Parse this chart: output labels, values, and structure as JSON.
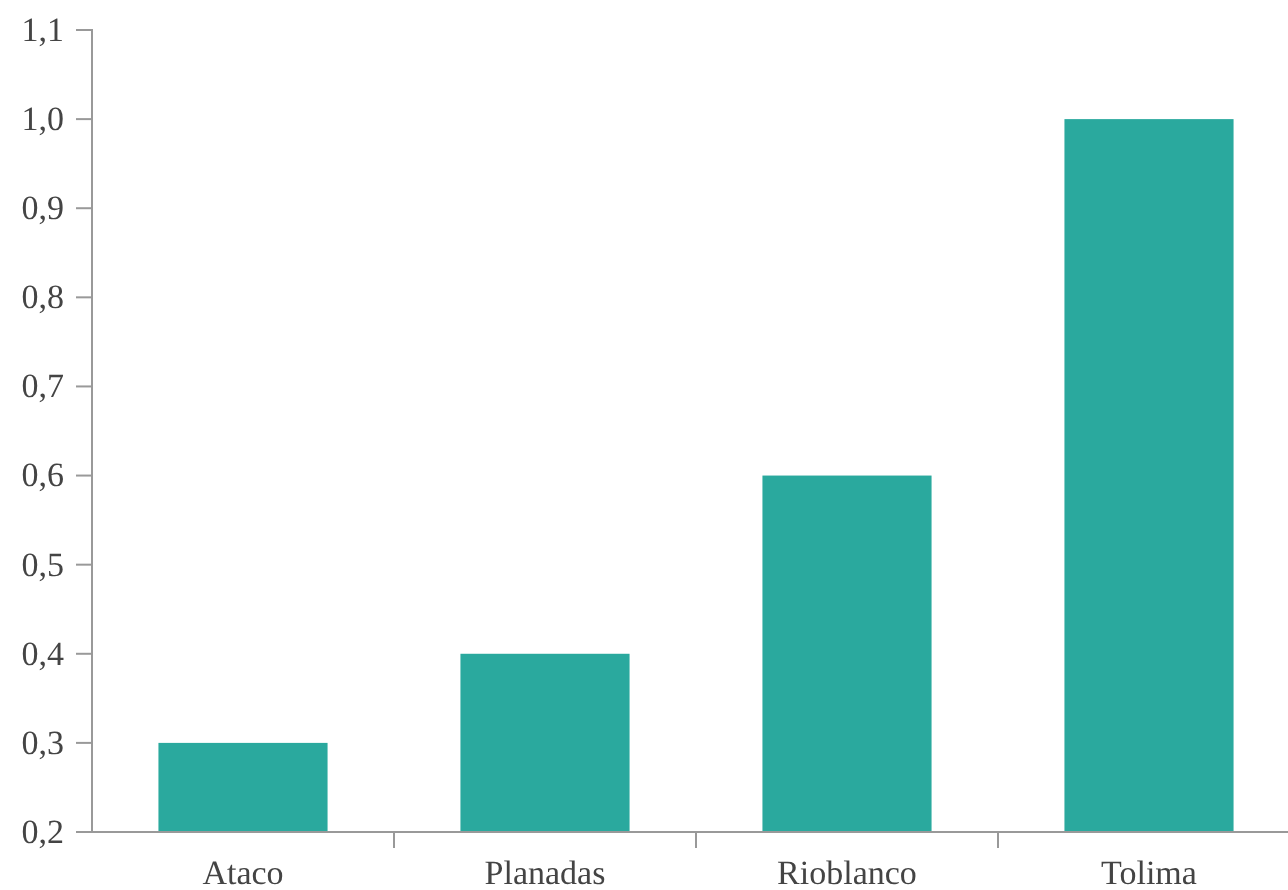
{
  "chart_data": {
    "type": "bar",
    "categories": [
      "Ataco",
      "Planadas",
      "Rioblanco",
      "Tolima"
    ],
    "values": [
      0.3,
      0.4,
      0.6,
      1.0
    ],
    "color": "#2aa99e",
    "ylim": [
      0.2,
      1.1
    ],
    "yticks": [
      {
        "value": 0.2,
        "label": "0,2"
      },
      {
        "value": 0.3,
        "label": "0,3"
      },
      {
        "value": 0.4,
        "label": "0,4"
      },
      {
        "value": 0.5,
        "label": "0,5"
      },
      {
        "value": 0.6,
        "label": "0,6"
      },
      {
        "value": 0.7,
        "label": "0,7"
      },
      {
        "value": 0.8,
        "label": "0,8"
      },
      {
        "value": 0.9,
        "label": "0,9"
      },
      {
        "value": 1.0,
        "label": "1,0"
      },
      {
        "value": 1.1,
        "label": "1,1"
      }
    ],
    "grid": false
  }
}
